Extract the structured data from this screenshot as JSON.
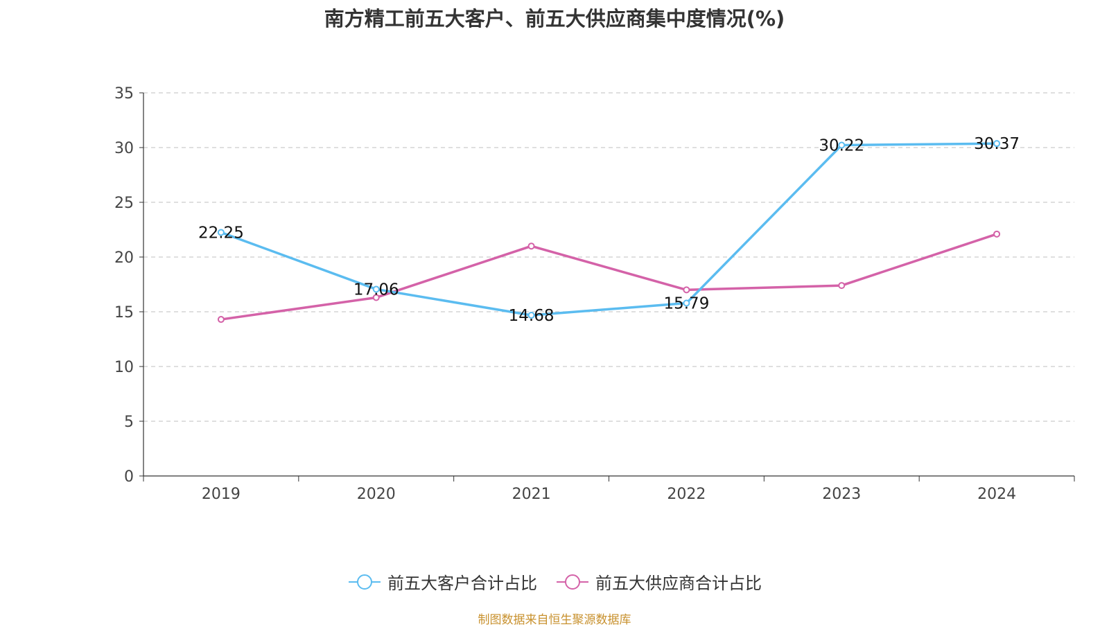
{
  "title": "南方精工前五大客户、前五大供应商集中度情况(%)",
  "footer": "制图数据来自恒生聚源数据库",
  "colors": {
    "customers": "#5bbcf0",
    "suppliers": "#d462a8",
    "axis": "#333333",
    "grid": "#cccccc"
  },
  "chart_data": {
    "type": "line",
    "title": "南方精工前五大客户、前五大供应商集中度情况(%)",
    "xlabel": "",
    "ylabel": "",
    "categories": [
      "2019",
      "2020",
      "2021",
      "2022",
      "2023",
      "2024"
    ],
    "ylim": [
      0,
      35
    ],
    "yticks": [
      "0",
      "5",
      "10",
      "15",
      "20",
      "25",
      "30",
      "35"
    ],
    "grid": true,
    "legend_position": "bottom-center",
    "series": [
      {
        "name": "前五大客户合计占比",
        "values": [
          22.25,
          17.06,
          14.68,
          15.79,
          30.22,
          30.37
        ],
        "labels": [
          "22.25",
          "17.06",
          "14.68",
          "15.79",
          "30.22",
          "30.37"
        ],
        "color": "#5bbcf0",
        "show_labels": true
      },
      {
        "name": "前五大供应商合计占比",
        "values": [
          14.3,
          16.3,
          21.0,
          17.0,
          17.4,
          22.1
        ],
        "labels": [],
        "color": "#d462a8",
        "show_labels": false
      }
    ]
  }
}
